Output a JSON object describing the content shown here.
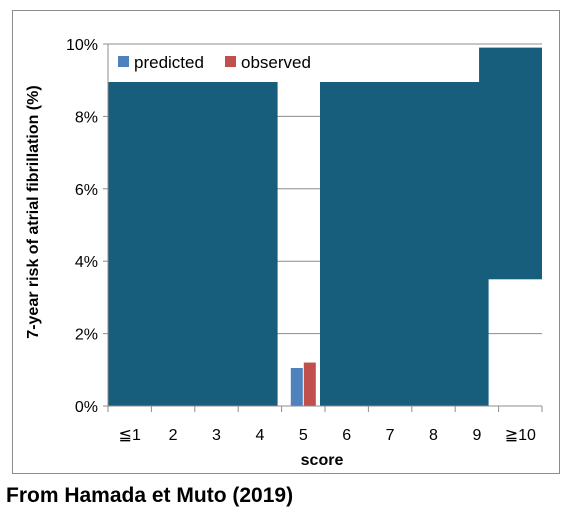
{
  "chart_data": {
    "type": "bar",
    "ylabel": "7-year risk of atrial fibrillation (%)",
    "xlabel": "score",
    "categories": [
      "≦1",
      "2",
      "3",
      "4",
      "5",
      "6",
      "7",
      "8",
      "9",
      "≧10"
    ],
    "ylim": [
      0,
      10
    ],
    "yticks": [
      "0%",
      "2%",
      "4%",
      "6%",
      "8%",
      "10%"
    ],
    "grid": true,
    "legend_position": "top-left",
    "series": [
      {
        "name": "predicted",
        "color": "#4f81bd",
        "values": [
          null,
          null,
          null,
          null,
          1.05,
          null,
          null,
          null,
          null,
          null
        ]
      },
      {
        "name": "observed",
        "color": "#c0504d",
        "values": [
          null,
          null,
          null,
          null,
          1.2,
          null,
          null,
          null,
          null,
          null
        ]
      }
    ],
    "overlays": {
      "color": "#175e7d",
      "blocks": [
        {
          "from": "≦1",
          "to": "4",
          "top": 8.95
        },
        {
          "from": "6",
          "to": "9",
          "top": 8.95
        },
        {
          "from": "9",
          "to": "≧10",
          "top": 9.9
        }
      ]
    }
  },
  "caption": "From Hamada et Muto (2019)"
}
